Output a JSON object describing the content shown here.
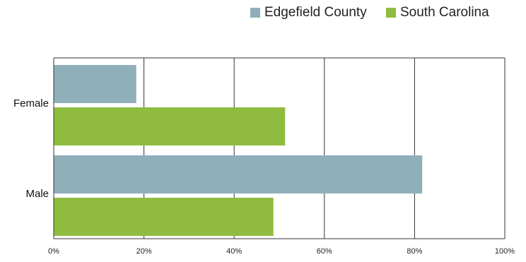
{
  "chart_data": {
    "type": "bar",
    "orientation": "horizontal",
    "categories": [
      "Female",
      "Male"
    ],
    "series": [
      {
        "name": "Edgefield County",
        "color": "#8fb0bb",
        "values": [
          18.3,
          81.7
        ]
      },
      {
        "name": "South Carolina",
        "color": "#8fbc3f",
        "values": [
          51.3,
          48.7
        ]
      }
    ],
    "xlim": [
      0,
      100
    ],
    "x_ticks": [
      "0%",
      "20%",
      "40%",
      "60%",
      "80%",
      "100%"
    ],
    "x_tick_values": [
      0,
      20,
      40,
      60,
      80,
      100
    ],
    "grid": true,
    "legend_position": "top-right",
    "title": "",
    "xlabel": "",
    "ylabel": ""
  }
}
